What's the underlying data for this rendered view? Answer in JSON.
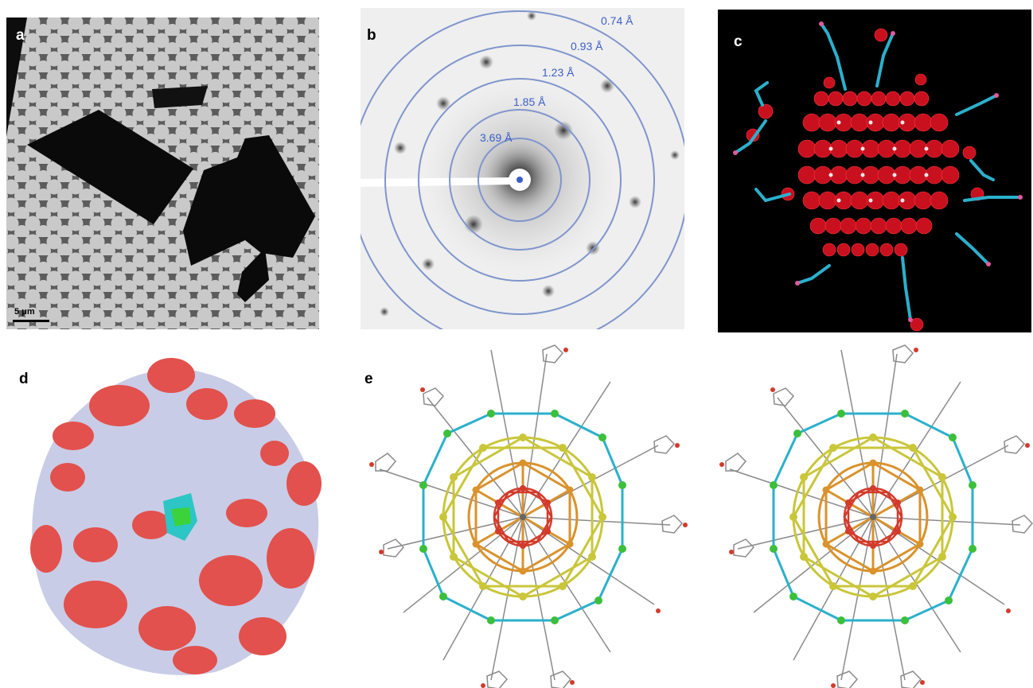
{
  "figure": {
    "panels": [
      {
        "id": "a",
        "label": "a",
        "scale_bar": "5 μm"
      },
      {
        "id": "b",
        "label": "b",
        "rings": [
          {
            "label": "0.74 Å"
          },
          {
            "label": "0.93 Å"
          },
          {
            "label": "1.23 Å"
          },
          {
            "label": "1.85 Å"
          },
          {
            "label": "3.69 Å"
          }
        ]
      },
      {
        "id": "c",
        "label": "c"
      },
      {
        "id": "d",
        "label": "d"
      },
      {
        "id": "e",
        "label": "e"
      }
    ],
    "colors": {
      "ring": "#7f95cc",
      "ring_label": "#3a5fc8",
      "density_red": "#d01a2a",
      "stick_cyan": "#2bb0cc",
      "surface_lavender": "#c9cce6",
      "surface_red": "#e2514d",
      "core_red": "#d23b2b",
      "core_orange": "#d9922c",
      "shell_yellow": "#c9c63a",
      "ligand_grey": "#8a8a8a",
      "green_atom": "#3cbf3c"
    }
  }
}
